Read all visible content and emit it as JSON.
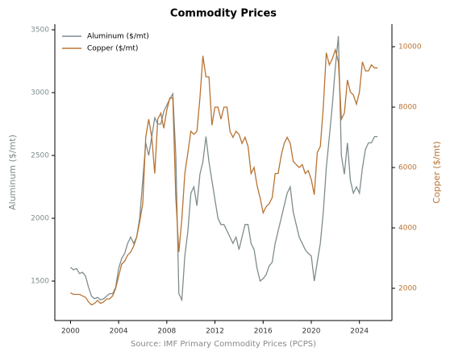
{
  "chart_data": {
    "type": "line",
    "title": "Commodity Prices",
    "xlabel": "Source: IMF Primary Commodity Prices (PCPS)",
    "ylabel": "Aluminum ($/mt)",
    "y2label": "Copper ($/mt)",
    "x": [
      2000,
      2000.25,
      2000.5,
      2000.75,
      2001,
      2001.25,
      2001.5,
      2001.75,
      2002,
      2002.25,
      2002.5,
      2002.75,
      2003,
      2003.25,
      2003.5,
      2003.75,
      2004,
      2004.25,
      2004.5,
      2004.75,
      2005,
      2005.25,
      2005.5,
      2005.75,
      2006,
      2006.25,
      2006.5,
      2006.75,
      2007,
      2007.25,
      2007.5,
      2007.75,
      2008,
      2008.25,
      2008.5,
      2008.75,
      2009,
      2009.25,
      2009.5,
      2009.75,
      2010,
      2010.25,
      2010.5,
      2010.75,
      2011,
      2011.25,
      2011.5,
      2011.75,
      2012,
      2012.25,
      2012.5,
      2012.75,
      2013,
      2013.25,
      2013.5,
      2013.75,
      2014,
      2014.25,
      2014.5,
      2014.75,
      2015,
      2015.25,
      2015.5,
      2015.75,
      2016,
      2016.25,
      2016.5,
      2016.75,
      2017,
      2017.25,
      2017.5,
      2017.75,
      2018,
      2018.25,
      2018.5,
      2018.75,
      2019,
      2019.25,
      2019.5,
      2019.75,
      2020,
      2020.25,
      2020.5,
      2020.75,
      2021,
      2021.25,
      2021.5,
      2021.75,
      2022,
      2022.25,
      2022.5,
      2022.75,
      2023,
      2023.25,
      2023.5,
      2023.75,
      2024,
      2024.25,
      2024.5,
      2024.75,
      2025,
      2025.25,
      2025.5
    ],
    "series": [
      {
        "name": "Aluminum ($/mt)",
        "color": "#7f8c8d",
        "axis": "y",
        "values": [
          1610,
          1590,
          1600,
          1560,
          1570,
          1540,
          1450,
          1380,
          1360,
          1370,
          1350,
          1360,
          1380,
          1400,
          1400,
          1450,
          1600,
          1680,
          1720,
          1800,
          1850,
          1800,
          1850,
          2000,
          2300,
          2600,
          2500,
          2650,
          2800,
          2750,
          2750,
          2850,
          2900,
          2950,
          2990,
          2500,
          1400,
          1350,
          1700,
          1900,
          2200,
          2250,
          2100,
          2350,
          2450,
          2650,
          2450,
          2300,
          2150,
          2000,
          1950,
          1950,
          1900,
          1850,
          1800,
          1850,
          1750,
          1850,
          1950,
          1950,
          1800,
          1750,
          1600,
          1500,
          1520,
          1550,
          1620,
          1650,
          1800,
          1900,
          2000,
          2100,
          2200,
          2250,
          2050,
          1950,
          1850,
          1800,
          1750,
          1720,
          1700,
          1500,
          1650,
          1800,
          2050,
          2400,
          2650,
          2900,
          3200,
          3450,
          2500,
          2350,
          2600,
          2300,
          2200,
          2250,
          2200,
          2400,
          2550,
          2600,
          2600,
          2650,
          2650
        ]
      },
      {
        "name": "Copper ($/mt)",
        "color": "#b87333",
        "axis": "y2",
        "values": [
          1850,
          1800,
          1800,
          1800,
          1750,
          1700,
          1550,
          1450,
          1500,
          1600,
          1500,
          1550,
          1650,
          1650,
          1750,
          2000,
          2400,
          2800,
          2900,
          3100,
          3200,
          3400,
          3700,
          4200,
          4800,
          7000,
          7600,
          7000,
          5800,
          7600,
          7800,
          7300,
          7900,
          8300,
          8300,
          5000,
          3200,
          4300,
          5800,
          6500,
          7200,
          7100,
          7200,
          8300,
          9700,
          9000,
          9000,
          7400,
          8000,
          8000,
          7600,
          8000,
          8000,
          7200,
          7000,
          7200,
          7100,
          6800,
          7000,
          6700,
          5800,
          6000,
          5400,
          5000,
          4500,
          4700,
          4800,
          5000,
          5800,
          5800,
          6400,
          6800,
          7000,
          6800,
          6200,
          6100,
          6000,
          6100,
          5800,
          5900,
          5600,
          5100,
          6500,
          6700,
          8000,
          9800,
          9400,
          9600,
          9900,
          9500,
          7600,
          7800,
          8900,
          8500,
          8400,
          8100,
          8500,
          9500,
          9200,
          9200,
          9400,
          9300,
          9300
        ]
      }
    ],
    "xlim": [
      1998.7,
      2026.7
    ],
    "xticks": [
      2000,
      2004,
      2008,
      2012,
      2016,
      2020,
      2024
    ],
    "ylim": [
      1186,
      3545
    ],
    "yticks": [
      1500,
      2000,
      2500,
      3000,
      3500
    ],
    "y2lim": [
      933,
      10747
    ],
    "y2ticks": [
      2000,
      4000,
      6000,
      8000,
      10000
    ],
    "legend": "upper left"
  }
}
